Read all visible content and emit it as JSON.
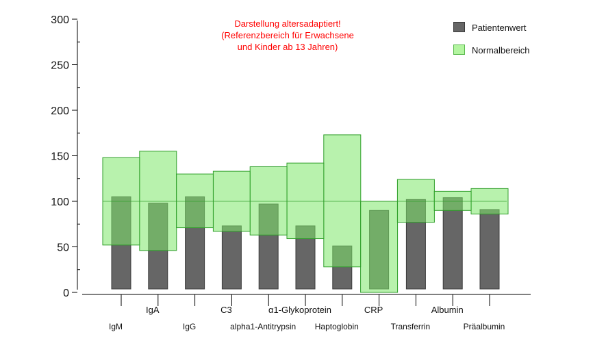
{
  "chart_data": {
    "type": "bar",
    "categories": [
      "IgM",
      "IgA",
      "IgG",
      "C3",
      "alpha1-Antitrypsin",
      "α1-Glykoprotein",
      "Haptoglobin",
      "CRP",
      "Transferrin",
      "Albumin",
      "Präalbumin"
    ],
    "category_label_rows": [
      "lower",
      "upper",
      "lower",
      "upper",
      "lower",
      "upper",
      "lower",
      "upper",
      "lower",
      "upper",
      "lower"
    ],
    "series": [
      {
        "name": "Patientenwert",
        "values": [
          105,
          98,
          105,
          73,
          97,
          73,
          51,
          90,
          102,
          104,
          91
        ]
      },
      {
        "name": "Normalbereich",
        "range_low": [
          52,
          46,
          71,
          67,
          63,
          59,
          28,
          0,
          77,
          90,
          86
        ],
        "range_high": [
          148,
          155,
          130,
          133,
          138,
          142,
          173,
          100,
          124,
          111,
          114
        ]
      }
    ],
    "reference_line": 100,
    "ylim": [
      0,
      300
    ],
    "yticks": [
      0,
      50,
      100,
      150,
      200,
      250,
      300
    ],
    "xlabel": "",
    "ylabel": "",
    "legend_position": "top-right",
    "colors": {
      "patient": "#666666",
      "patient_edge": "#3a3a3a",
      "normal": "#7ee86a",
      "normal_edge": "#2f9e2a",
      "note": "#ff0000"
    }
  },
  "annotation": {
    "lines": [
      "Darstellung altersadaptiert!",
      "(Referenzbereich für Erwachsene",
      "und Kinder ab 13 Jahren)"
    ]
  },
  "legend": {
    "patient": "Patientenwert",
    "normal": "Normalbereich"
  }
}
